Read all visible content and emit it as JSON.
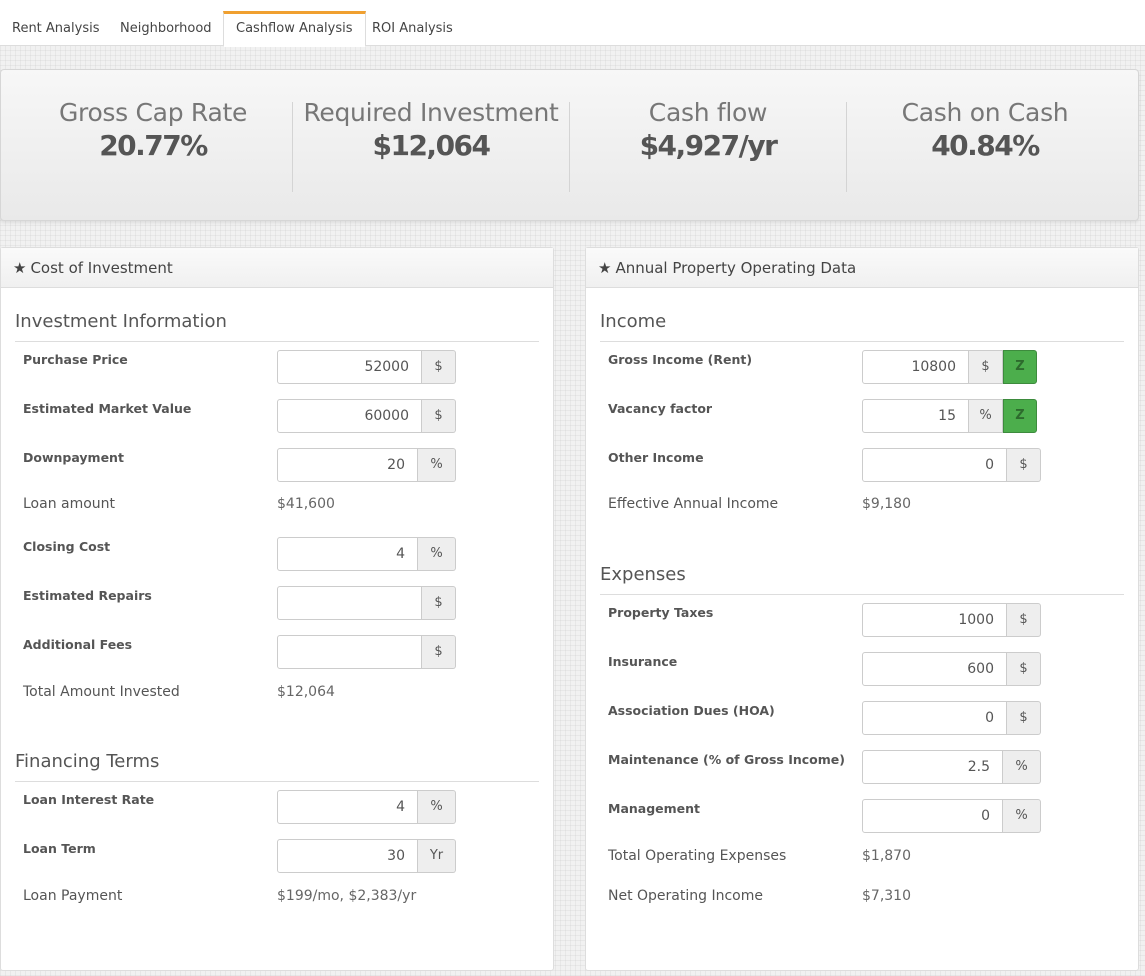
{
  "tabs": [
    {
      "label": "Rent Analysis"
    },
    {
      "label": "Neighborhood"
    },
    {
      "label": "Cashflow Analysis"
    },
    {
      "label": "ROI Analysis"
    }
  ],
  "summary": {
    "gross_cap_rate": {
      "label": "Gross Cap Rate",
      "value": "20.77%"
    },
    "required_investment": {
      "label": "Required Investment",
      "value": "$12,064"
    },
    "cash_flow": {
      "label": "Cash flow",
      "value": "$4,927/yr"
    },
    "cash_on_cash": {
      "label": "Cash on Cash",
      "value": "40.84%"
    }
  },
  "cost_panel": {
    "title": "Cost of Investment",
    "investment_info": {
      "title": "Investment Information",
      "purchase_price": {
        "label": "Purchase Price",
        "value": "52000",
        "unit": "$"
      },
      "market_value": {
        "label": "Estimated Market Value",
        "value": "60000",
        "unit": "$"
      },
      "downpayment": {
        "label": "Downpayment",
        "value": "20",
        "unit": "%"
      },
      "loan_amount": {
        "label": "Loan amount",
        "value": "$41,600"
      },
      "closing_cost": {
        "label": "Closing Cost",
        "value": "4",
        "unit": "%"
      },
      "repairs": {
        "label": "Estimated Repairs",
        "value": "",
        "unit": "$"
      },
      "fees": {
        "label": "Additional Fees",
        "value": "",
        "unit": "$"
      },
      "total_invested": {
        "label": "Total Amount Invested",
        "value": "$12,064"
      }
    },
    "financing": {
      "title": "Financing Terms",
      "interest_rate": {
        "label": "Loan Interest Rate",
        "value": "4",
        "unit": "%"
      },
      "loan_term": {
        "label": "Loan Term",
        "value": "30",
        "unit": "Yr"
      },
      "loan_payment": {
        "label": "Loan Payment",
        "value": "$199/mo, $2,383/yr"
      }
    }
  },
  "operating_panel": {
    "title": "Annual Property Operating Data",
    "income": {
      "title": "Income",
      "gross_income": {
        "label": "Gross Income (Rent)",
        "value": "10800",
        "unit": "$",
        "button": "Z"
      },
      "vacancy": {
        "label": "Vacancy factor",
        "value": "15",
        "unit": "%",
        "button": "Z"
      },
      "other_income": {
        "label": "Other Income",
        "value": "0",
        "unit": "$"
      },
      "effective_income": {
        "label": "Effective Annual Income",
        "value": "$9,180"
      }
    },
    "expenses": {
      "title": "Expenses",
      "property_taxes": {
        "label": "Property Taxes",
        "value": "1000",
        "unit": "$"
      },
      "insurance": {
        "label": "Insurance",
        "value": "600",
        "unit": "$"
      },
      "hoa": {
        "label": "Association Dues (HOA)",
        "value": "0",
        "unit": "$"
      },
      "maintenance": {
        "label": "Maintenance (% of Gross Income)",
        "value": "2.5",
        "unit": "%"
      },
      "management": {
        "label": "Management",
        "value": "0",
        "unit": "%"
      },
      "total_expenses": {
        "label": "Total Operating Expenses",
        "value": "$1,870"
      },
      "noi": {
        "label": "Net Operating Income",
        "value": "$7,310"
      }
    }
  },
  "icons": {
    "panel_header": "star-icon"
  },
  "colors": {
    "tab_accent": "#f0a030",
    "z_button": "#4cae4c"
  }
}
